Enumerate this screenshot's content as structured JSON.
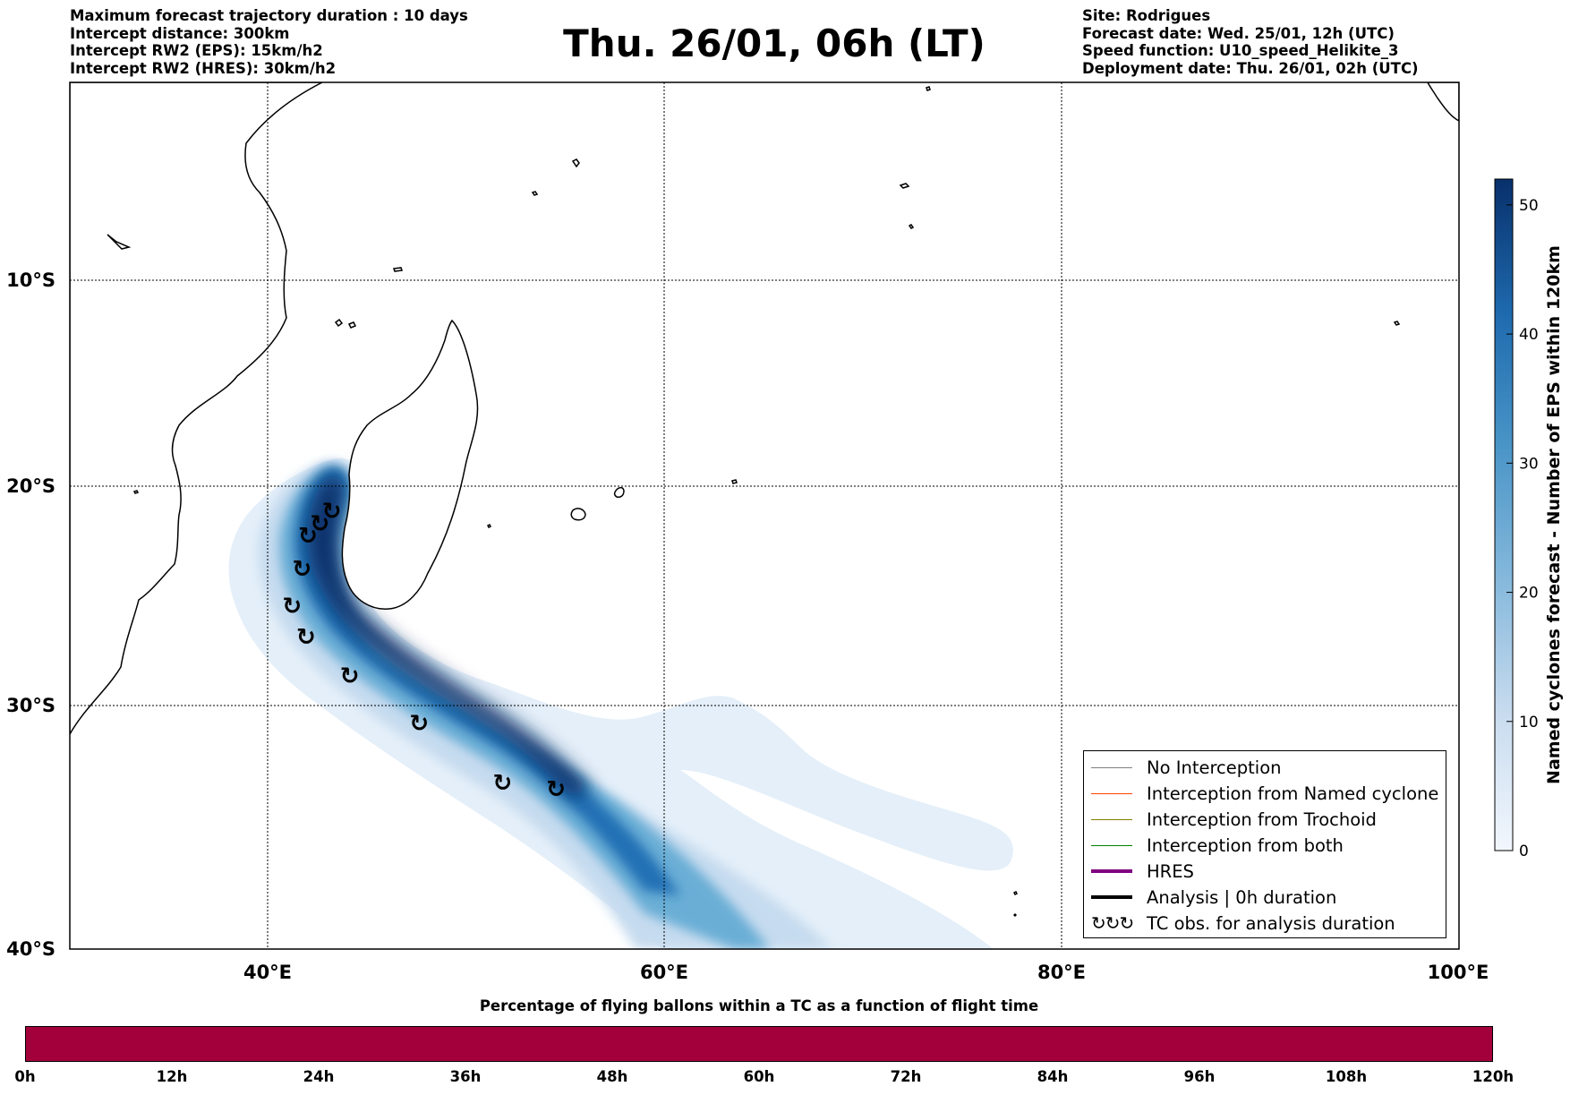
{
  "header": {
    "left_lines": [
      "Maximum forecast trajectory duration : 10 days",
      "Intercept distance: 300km",
      "Intercept RW2 (EPS):  15km/h2",
      "Intercept RW2 (HRES): 30km/h2"
    ],
    "title": "Thu. 26/01, 06h (LT)",
    "right_lines": [
      "Site: Rodrigues",
      "Forecast date: Wed. 25/01, 12h (UTC)",
      "Speed function: U10_speed_Helikite_3",
      "Deployment date: Thu. 26/01, 02h (UTC)"
    ]
  },
  "map": {
    "lon_ticks": [
      "40°E",
      "60°E",
      "80°E",
      "100°E"
    ],
    "lat_ticks": [
      "10°S",
      "20°S",
      "30°S",
      "40°S"
    ],
    "tc_obs_symbol": "↻",
    "tc_obs_positions": [
      [
        43.2,
        -19.7
      ],
      [
        42.6,
        -20.3
      ],
      [
        42.0,
        -20.9
      ],
      [
        41.7,
        -22.5
      ],
      [
        41.2,
        -24.3
      ],
      [
        41.9,
        -25.8
      ],
      [
        44.1,
        -27.7
      ],
      [
        47.6,
        -30.0
      ],
      [
        51.8,
        -32.9
      ],
      [
        54.5,
        -33.2
      ]
    ],
    "colors": {
      "land_line": "#000000",
      "density_light": "#e3eef9",
      "density_dark": "#08306b",
      "tc_obs": "#000000"
    }
  },
  "colorbar": {
    "label": "Named cyclones forecast - Number of EPS within 120km",
    "ticks": [
      "0",
      "10",
      "20",
      "30",
      "40",
      "50"
    ],
    "max_value": 52
  },
  "legend": {
    "items": [
      {
        "label": "No Interception",
        "color": "#808080",
        "width": 1
      },
      {
        "label": "Interception from Named cyclone",
        "color": "#ff4500",
        "width": 1
      },
      {
        "label": "Interception from Trochoid",
        "color": "#808000",
        "width": 1
      },
      {
        "label": "Interception from both",
        "color": "#008000",
        "width": 1
      },
      {
        "label": "HRES",
        "color": "#800080",
        "width": 4
      },
      {
        "label": "Analysis | 0h duration",
        "color": "#000000",
        "width": 4
      }
    ],
    "tc_obs_label": "TC obs. for analysis duration",
    "tc_obs_icon": "↻↻↻"
  },
  "bottom": {
    "title": "Percentage of flying ballons within a TC as a function of flight time",
    "ticks": [
      "0h",
      "12h",
      "24h",
      "36h",
      "48h",
      "60h",
      "72h",
      "84h",
      "96h",
      "108h",
      "120h"
    ],
    "bar_color": "#a3003b"
  }
}
